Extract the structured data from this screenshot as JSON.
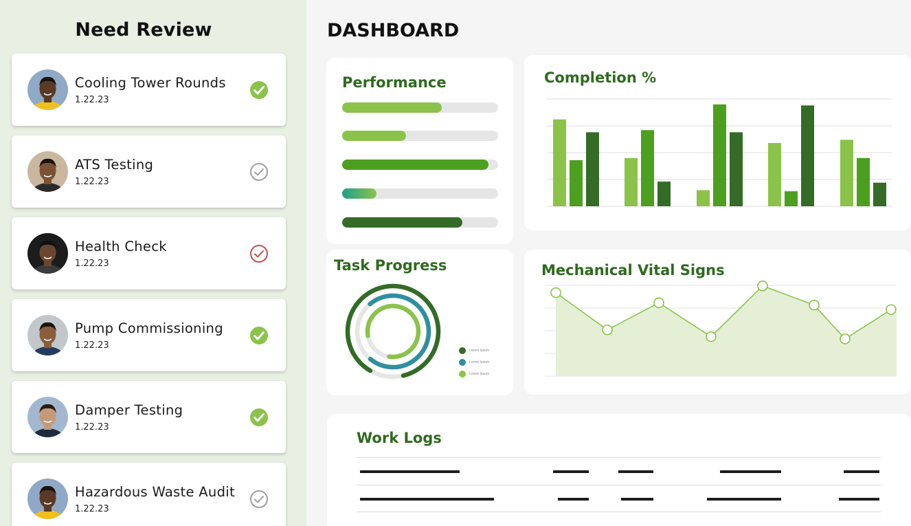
{
  "sidebar": {
    "title": "Need Review",
    "items": [
      {
        "title": "Cooling Tower Rounds",
        "date": "1.22.23",
        "status": "approved"
      },
      {
        "title": "ATS Testing",
        "date": "1.22.23",
        "status": "pending"
      },
      {
        "title": "Health Check",
        "date": "1.22.23",
        "status": "flagged"
      },
      {
        "title": "Pump Commissioning",
        "date": "1.22.23",
        "status": "approved"
      },
      {
        "title": "Damper Testing",
        "date": "1.22.23",
        "status": "approved"
      },
      {
        "title": "Hazardous Waste Audit",
        "date": "1.22.23",
        "status": "pending"
      }
    ]
  },
  "dashboard": {
    "title": "DASHBOARD",
    "performance": {
      "title": "Performance",
      "bars": [
        {
          "fraction": 0.64,
          "color": "#8bc34a"
        },
        {
          "fraction": 0.41,
          "color": "#8bc34a"
        },
        {
          "fraction": 0.94,
          "color": "#4c9f1f"
        },
        {
          "fraction": 0.22,
          "color": "gradient-teal-green"
        },
        {
          "fraction": 0.77,
          "color": "#336b27"
        }
      ]
    },
    "completion": {
      "title": "Completion %"
    },
    "task_progress": {
      "title": "Task Progress",
      "rings": [
        {
          "fraction": 0.88,
          "color": "#336b27"
        },
        {
          "fraction": 0.72,
          "color": "#2f8fa0"
        },
        {
          "fraction": 0.8,
          "color": "#8bc34a"
        }
      ],
      "legend": [
        "Lorem Ipsum",
        "Lorem Ipsum",
        "Lorem Ipsum"
      ]
    },
    "vital_signs": {
      "title": "Mechanical Vital Signs"
    },
    "work_logs": {
      "title": "Work Logs"
    }
  },
  "colors": {
    "sidebar_bg": "#e8efe3",
    "accent_dark": "#2e6a1e",
    "green_light": "#8bc34a",
    "green_mid": "#4c9f1f",
    "green_dark": "#336b27",
    "flag_red": "#c0504d",
    "pending_gray": "#9e9e9e"
  },
  "chart_data": [
    {
      "type": "bar",
      "categories": [
        "",
        "",
        "",
        "",
        ""
      ],
      "series": [
        {
          "values": [
            81,
            45,
            15,
            59,
            62
          ]
        },
        {
          "values": [
            43,
            71,
            95,
            14,
            45
          ]
        },
        {
          "values": [
            69,
            23,
            69,
            94,
            22
          ]
        }
      ],
      "ylim": [
        0,
        100
      ],
      "grid": true
    },
    {
      "type": "area",
      "x": [
        1,
        2,
        3,
        4,
        5,
        6,
        7,
        8
      ],
      "values": [
        74,
        41,
        65,
        35,
        80,
        63,
        33,
        59
      ],
      "ylim": [
        0,
        100
      ],
      "grid": true
    }
  ]
}
